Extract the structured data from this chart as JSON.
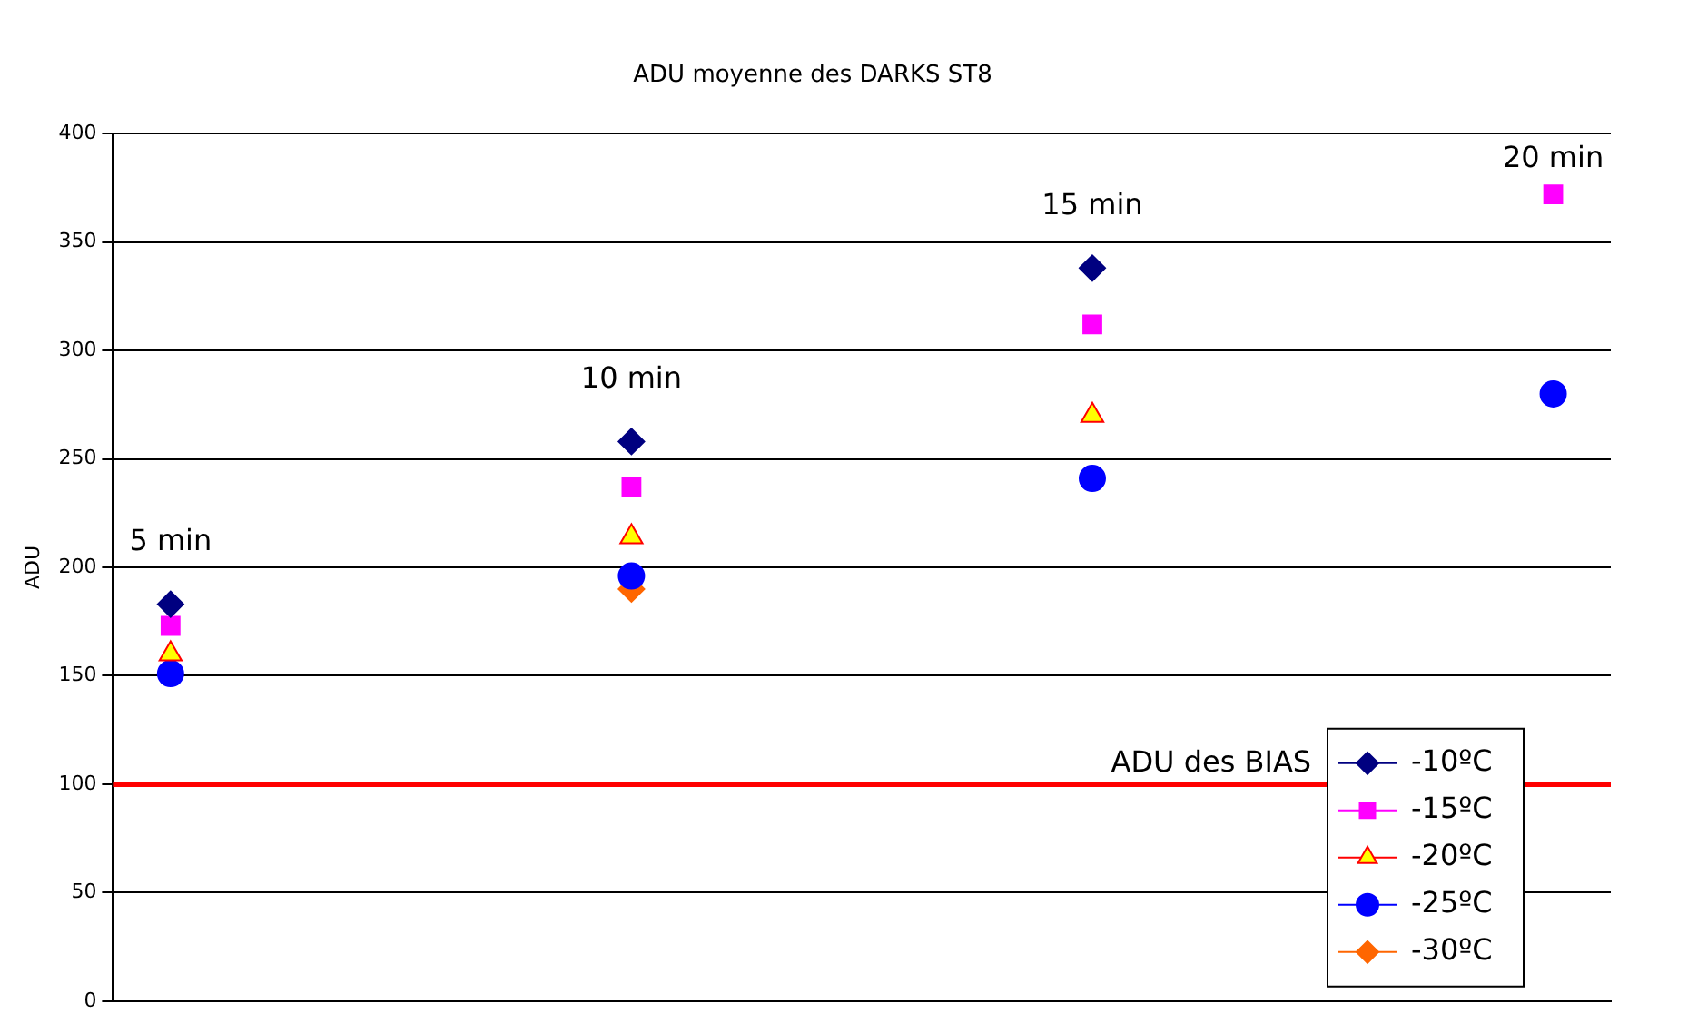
{
  "chart_data": {
    "type": "scatter",
    "title": "ADU moyenne des DARKS ST8",
    "ylabel": "ADU",
    "categories": [
      null,
      null,
      null,
      null,
      null,
      null,
      null,
      null,
      null,
      null,
      null,
      null,
      null
    ],
    "series": [
      {
        "name": "-10ºC",
        "color": "#000080",
        "marker": "diamond",
        "values": [
          183,
          null,
          null,
          null,
          258,
          null,
          null,
          null,
          338,
          null,
          null,
          null,
          null
        ]
      },
      {
        "name": "-15ºC",
        "color": "#ff00ff",
        "marker": "square",
        "values": [
          173,
          null,
          null,
          null,
          237,
          null,
          null,
          null,
          312,
          null,
          null,
          null,
          372
        ]
      },
      {
        "name": "-20ºC",
        "color": "#ffff00",
        "marker": "triangle",
        "values": [
          160,
          null,
          null,
          null,
          214,
          null,
          null,
          null,
          270,
          null,
          null,
          null,
          null
        ]
      },
      {
        "name": "-25ºC",
        "color": "#0000ff",
        "marker": "circle",
        "values": [
          151,
          null,
          null,
          null,
          196,
          null,
          null,
          null,
          241,
          null,
          null,
          null,
          280
        ]
      },
      {
        "name": "-30ºC",
        "color": "#ff6600",
        "marker": "diamond",
        "values": [
          null,
          null,
          null,
          null,
          190,
          null,
          null,
          null,
          null,
          null,
          null,
          null,
          null
        ]
      }
    ],
    "ylim": [
      0,
      400
    ],
    "yticks": [
      0,
      50,
      100,
      150,
      200,
      250,
      300,
      350,
      400
    ],
    "grid": "y",
    "legend": "bottom right",
    "tick_labels": "y",
    "ref_lines": [
      {
        "axis": "y",
        "value": 100,
        "label": "ADU des BIAS",
        "color": "#ff0000"
      }
    ],
    "annotations": [
      "5 min",
      "10 min",
      "15 min",
      "20 min"
    ]
  }
}
